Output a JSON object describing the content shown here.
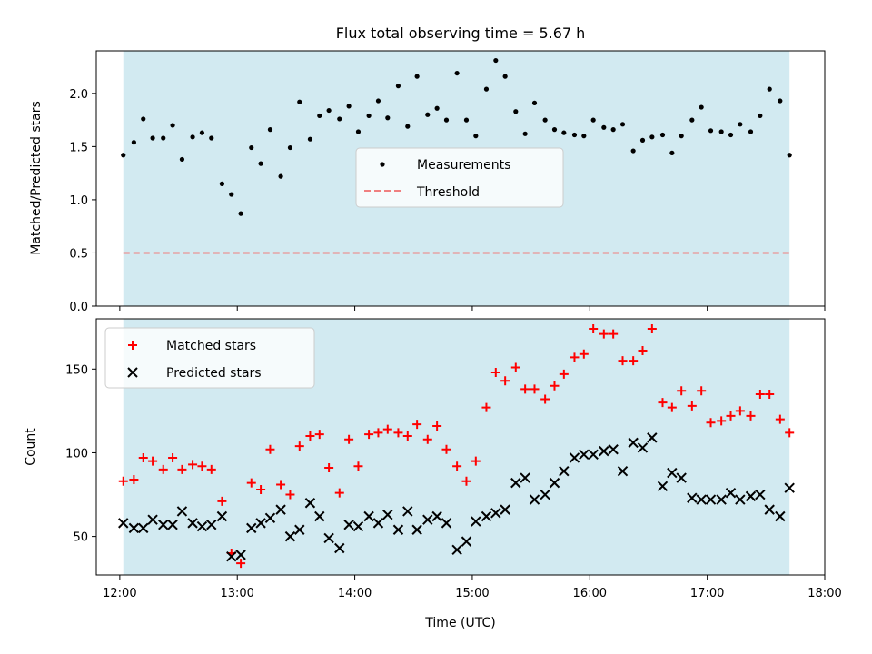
{
  "chart_data": [
    {
      "type": "scatter",
      "title": "Flux total observing time = 5.67 h",
      "xlabel": "",
      "ylabel": "Matched/Predicted stars",
      "xlim_hours": [
        11.8,
        18.0
      ],
      "ylim": [
        0,
        2.4
      ],
      "yticks": [
        0,
        0.5,
        1.0,
        1.5,
        2.0
      ],
      "ytick_labels": [
        "0.0",
        "0.5",
        "1.0",
        "1.5",
        "2.0"
      ],
      "observing_window_hours": [
        12.03,
        17.7
      ],
      "shade_color": "#add8e6",
      "legend": {
        "placement": "center",
        "entries": [
          "Measurements",
          "Threshold"
        ]
      },
      "threshold": {
        "name": "Threshold",
        "value": 0.5,
        "color": "#f08080",
        "style": "dashed"
      },
      "series": [
        {
          "name": "Measurements",
          "color": "#000000",
          "x": [
            12.03,
            12.12,
            12.2,
            12.28,
            12.37,
            12.45,
            12.53,
            12.62,
            12.7,
            12.78,
            12.87,
            12.95,
            13.03,
            13.12,
            13.2,
            13.28,
            13.37,
            13.45,
            13.53,
            13.62,
            13.7,
            13.78,
            13.87,
            13.95,
            14.03,
            14.12,
            14.2,
            14.28,
            14.37,
            14.45,
            14.53,
            14.62,
            14.7,
            14.78,
            14.87,
            14.95,
            15.03,
            15.12,
            15.2,
            15.28,
            15.37,
            15.45,
            15.53,
            15.62,
            15.7,
            15.78,
            15.87,
            15.95,
            16.03,
            16.12,
            16.2,
            16.28,
            16.37,
            16.45,
            16.53,
            16.62,
            16.7,
            16.78,
            16.87,
            16.95,
            17.03,
            17.12,
            17.2,
            17.28,
            17.37,
            17.45,
            17.53,
            17.62,
            17.7
          ],
          "y": [
            1.42,
            1.54,
            1.76,
            1.58,
            1.58,
            1.7,
            1.38,
            1.59,
            1.63,
            1.58,
            1.15,
            1.05,
            0.87,
            1.49,
            1.34,
            1.66,
            1.22,
            1.49,
            1.92,
            1.57,
            1.79,
            1.84,
            1.76,
            1.88,
            1.64,
            1.79,
            1.93,
            1.77,
            2.07,
            1.69,
            2.16,
            1.8,
            1.86,
            1.75,
            2.19,
            1.75,
            1.6,
            2.04,
            2.31,
            2.16,
            1.83,
            1.62,
            1.91,
            1.75,
            1.66,
            1.63,
            1.61,
            1.6,
            1.75,
            1.68,
            1.66,
            1.71,
            1.46,
            1.56,
            1.59,
            1.61,
            1.44,
            1.6,
            1.75,
            1.87,
            1.65,
            1.64,
            1.61,
            1.71,
            1.64,
            1.79,
            2.04,
            1.93,
            1.42
          ]
        }
      ]
    },
    {
      "type": "scatter",
      "title": "",
      "xlabel": "Time (UTC)",
      "ylabel": "Count",
      "xlim_hours": [
        11.8,
        18.0
      ],
      "ylim": [
        27,
        180
      ],
      "yticks": [
        50,
        100,
        150
      ],
      "ytick_labels": [
        "50",
        "100",
        "150"
      ],
      "xticks_hours": [
        12,
        13,
        14,
        15,
        16,
        17,
        18
      ],
      "xtick_labels": [
        "12:00",
        "13:00",
        "14:00",
        "15:00",
        "16:00",
        "17:00",
        "18:00"
      ],
      "observing_window_hours": [
        12.03,
        17.7
      ],
      "shade_color": "#add8e6",
      "legend": {
        "placement": "top-left",
        "entries": [
          "Matched stars",
          "Predicted stars"
        ]
      },
      "series": [
        {
          "name": "Matched stars",
          "marker": "plus",
          "color": "#ff0000",
          "x": [
            12.03,
            12.12,
            12.2,
            12.28,
            12.37,
            12.45,
            12.53,
            12.62,
            12.7,
            12.78,
            12.87,
            12.95,
            13.03,
            13.12,
            13.2,
            13.28,
            13.37,
            13.45,
            13.53,
            13.62,
            13.7,
            13.78,
            13.87,
            13.95,
            14.03,
            14.12,
            14.2,
            14.28,
            14.37,
            14.45,
            14.53,
            14.62,
            14.7,
            14.78,
            14.87,
            14.95,
            15.03,
            15.12,
            15.2,
            15.28,
            15.37,
            15.45,
            15.53,
            15.62,
            15.7,
            15.78,
            15.87,
            15.95,
            16.03,
            16.12,
            16.2,
            16.28,
            16.37,
            16.45,
            16.53,
            16.62,
            16.7,
            16.78,
            16.87,
            16.95,
            17.03,
            17.12,
            17.2,
            17.28,
            17.37,
            17.45,
            17.53,
            17.62,
            17.7
          ],
          "y": [
            83,
            84,
            97,
            95,
            90,
            97,
            90,
            93,
            92,
            90,
            71,
            40,
            34,
            82,
            78,
            102,
            81,
            75,
            104,
            110,
            111,
            91,
            76,
            108,
            92,
            111,
            112,
            114,
            112,
            110,
            117,
            108,
            116,
            102,
            92,
            83,
            95,
            127,
            148,
            143,
            151,
            138,
            138,
            132,
            140,
            147,
            157,
            159,
            174,
            171,
            171,
            155,
            155,
            161,
            174,
            130,
            127,
            137,
            128,
            137,
            118,
            119,
            122,
            125,
            122,
            135,
            135,
            120,
            112
          ]
        },
        {
          "name": "Predicted stars",
          "marker": "x",
          "color": "#000000",
          "x": [
            12.03,
            12.12,
            12.2,
            12.28,
            12.37,
            12.45,
            12.53,
            12.62,
            12.7,
            12.78,
            12.87,
            12.95,
            13.03,
            13.12,
            13.2,
            13.28,
            13.37,
            13.45,
            13.53,
            13.62,
            13.7,
            13.78,
            13.87,
            13.95,
            14.03,
            14.12,
            14.2,
            14.28,
            14.37,
            14.45,
            14.53,
            14.62,
            14.7,
            14.78,
            14.87,
            14.95,
            15.03,
            15.12,
            15.2,
            15.28,
            15.37,
            15.45,
            15.53,
            15.62,
            15.7,
            15.78,
            15.87,
            15.95,
            16.03,
            16.12,
            16.2,
            16.28,
            16.37,
            16.45,
            16.53,
            16.62,
            16.7,
            16.78,
            16.87,
            16.95,
            17.03,
            17.12,
            17.2,
            17.28,
            17.37,
            17.45,
            17.53,
            17.62,
            17.7
          ],
          "y": [
            58,
            55,
            55,
            60,
            57,
            57,
            65,
            58,
            56,
            57,
            62,
            38,
            39,
            55,
            58,
            61,
            66,
            50,
            54,
            70,
            62,
            49,
            43,
            57,
            56,
            62,
            58,
            63,
            54,
            65,
            54,
            60,
            62,
            58,
            42,
            47,
            59,
            62,
            64,
            66,
            82,
            85,
            72,
            75,
            82,
            89,
            97,
            99,
            99,
            101,
            102,
            89,
            106,
            103,
            109,
            80,
            88,
            85,
            73,
            72,
            72,
            72,
            76,
            72,
            74,
            75,
            66,
            62,
            79
          ]
        }
      ]
    }
  ]
}
